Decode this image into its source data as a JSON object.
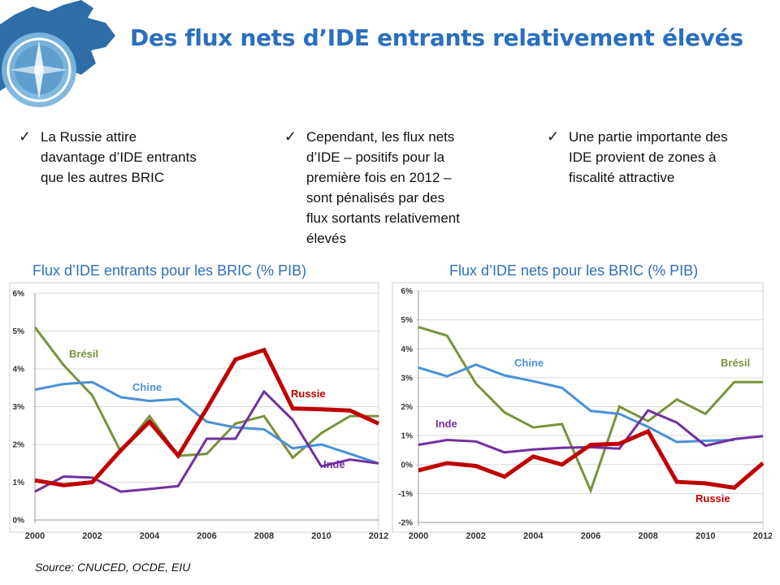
{
  "header": {
    "title": "Des flux nets d’IDE entrants relativement élevés"
  },
  "bullets": [
    {
      "text_lines": [
        "La Russie attire",
        "davantage d’IDE entrants",
        "que les autres BRIC"
      ]
    },
    {
      "text_lines": [
        "Cependant, les flux nets",
        "d’IDE – positifs pour la",
        "première fois en 2012 –",
        "sont pénalisés par des",
        "flux sortants relativement",
        "élevés"
      ]
    },
    {
      "text_lines": [
        "Une partie importante des",
        "IDE provient de zones à",
        "fiscalité attractive"
      ]
    }
  ],
  "source": "Source: CNUCED, OCDE, EIU",
  "chart_data": [
    {
      "type": "line",
      "title": "Flux d’IDE entrants pour les BRIC (% PIB)",
      "x": [
        2000,
        2001,
        2002,
        2003,
        2004,
        2005,
        2006,
        2007,
        2008,
        2009,
        2010,
        2011,
        2012
      ],
      "x_tick_labels": [
        "2000",
        "2002",
        "2004",
        "2006",
        "2008",
        "2010",
        "2012"
      ],
      "y_tick_labels": [
        "0%",
        "1%",
        "2%",
        "3%",
        "4%",
        "5%",
        "6%"
      ],
      "ylim": [
        0,
        6
      ],
      "grid": "horizontal",
      "series": [
        {
          "name": "Brésil",
          "color": "#77933c",
          "values": [
            5.1,
            4.1,
            3.3,
            1.8,
            2.75,
            1.7,
            1.75,
            2.55,
            2.75,
            1.65,
            2.3,
            2.75,
            2.75
          ]
        },
        {
          "name": "Chine",
          "color": "#4a90d9",
          "values": [
            3.45,
            3.6,
            3.65,
            3.25,
            3.15,
            3.2,
            2.6,
            2.45,
            2.4,
            1.9,
            2.0,
            1.75,
            1.5
          ]
        },
        {
          "name": "Inde",
          "color": "#7030a0",
          "values": [
            0.75,
            1.15,
            1.12,
            0.75,
            0.82,
            0.9,
            2.15,
            2.15,
            3.4,
            2.65,
            1.42,
            1.6,
            1.5
          ]
        },
        {
          "name": "Russie",
          "color": "#c00000",
          "values": [
            1.05,
            0.92,
            1.0,
            1.85,
            2.6,
            1.7,
            2.95,
            4.25,
            4.5,
            2.95,
            2.93,
            2.9,
            2.55
          ]
        }
      ]
    },
    {
      "type": "line",
      "title": "Flux d’IDE nets pour les BRIC (% PIB)",
      "x": [
        2000,
        2001,
        2002,
        2003,
        2004,
        2005,
        2006,
        2007,
        2008,
        2009,
        2010,
        2011,
        2012
      ],
      "x_tick_labels": [
        "2000",
        "2002",
        "2004",
        "2006",
        "2008",
        "2010",
        "2012"
      ],
      "y_tick_labels": [
        "-2%",
        "-1%",
        "0%",
        "1%",
        "2%",
        "3%",
        "4%",
        "5%",
        "6%"
      ],
      "ylim": [
        -2,
        6
      ],
      "grid": "horizontal",
      "series": [
        {
          "name": "Brésil",
          "color": "#77933c",
          "values": [
            4.75,
            4.45,
            2.8,
            1.8,
            1.28,
            1.4,
            -0.9,
            2.0,
            1.5,
            2.25,
            1.75,
            2.85,
            2.85
          ]
        },
        {
          "name": "Chine",
          "color": "#4a90d9",
          "values": [
            3.35,
            3.05,
            3.45,
            3.08,
            2.88,
            2.65,
            1.85,
            1.75,
            1.3,
            0.78,
            0.82,
            0.85,
            null
          ]
        },
        {
          "name": "Inde",
          "color": "#7030a0",
          "values": [
            0.68,
            0.85,
            0.8,
            0.42,
            0.52,
            0.58,
            0.6,
            0.55,
            1.87,
            1.45,
            0.65,
            0.88,
            0.98
          ]
        },
        {
          "name": "Russie",
          "color": "#c00000",
          "values": [
            -0.2,
            0.05,
            -0.05,
            -0.42,
            0.28,
            0.0,
            0.68,
            0.72,
            1.15,
            -0.6,
            -0.65,
            -0.8,
            0.05
          ]
        }
      ]
    }
  ]
}
